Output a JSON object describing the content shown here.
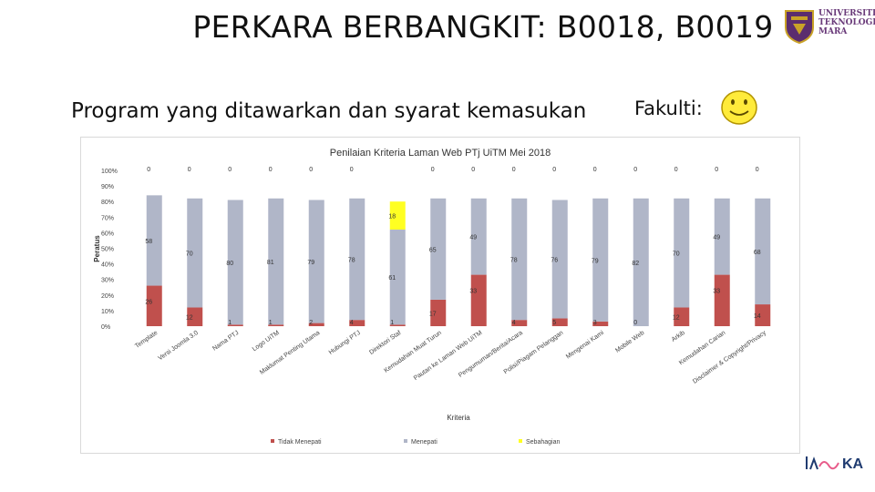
{
  "slide": {
    "title": "PERKARA BERBANGKIT: B0018, B0019",
    "subtitle": "Program yang ditawarkan dan syarat kemasukan",
    "faculty_label": "Fakulti",
    "faculty_colon": ":",
    "logo_lines": [
      "UNIVERSITI",
      "TEKNOLOGI",
      "MARA"
    ],
    "brand": "KA",
    "colors": {
      "red": "#c0504d",
      "grey": "#b0b6c8",
      "yellow": "#ffff22",
      "smiley": "#ffeb3b"
    }
  },
  "chart_data": {
    "type": "bar",
    "stacked": true,
    "title": "Penilaian Kriteria Laman Web PTj UiTM Mei 2018",
    "xlabel": "Kriteria",
    "ylabel": "Peratus",
    "ylim": [
      0,
      100
    ],
    "yticks": [
      "0%",
      "10%",
      "20%",
      "30%",
      "40%",
      "50%",
      "60%",
      "70%",
      "80%",
      "90%",
      "100%"
    ],
    "legend_position": "bottom",
    "categories": [
      "Template",
      "Versi Joomla 3.0",
      "Nama PTJ",
      "Logo UiTM",
      "Maklumat Penting Utama",
      "Hubungi PTJ",
      "Direktori Staf",
      "Kemudahan Muat Turun",
      "Pautan ke Laman Web UiTM",
      "Pengumuman/Berita/Acara",
      "Polisi/Piagam Pelanggan",
      "Mengenai Kami",
      "Mobile Web",
      "Arkib",
      "Kemudahan Carian",
      "Disclaimer & Copyright/Privacy"
    ],
    "series": [
      {
        "name": "Tidak Menepati",
        "color": "#c0504d",
        "values": [
          26,
          12,
          1,
          1,
          2,
          4,
          1,
          17,
          33,
          4,
          5,
          3,
          0,
          12,
          33,
          14
        ]
      },
      {
        "name": "Menepati",
        "color": "#b0b6c8",
        "values": [
          58,
          70,
          80,
          81,
          79,
          78,
          61,
          65,
          49,
          78,
          76,
          79,
          82,
          70,
          49,
          68
        ]
      },
      {
        "name": "Sebahagian",
        "color": "#ffff22",
        "values": [
          0,
          0,
          0,
          0,
          0,
          0,
          18,
          0,
          0,
          0,
          0,
          0,
          0,
          0,
          0,
          0
        ]
      }
    ]
  }
}
